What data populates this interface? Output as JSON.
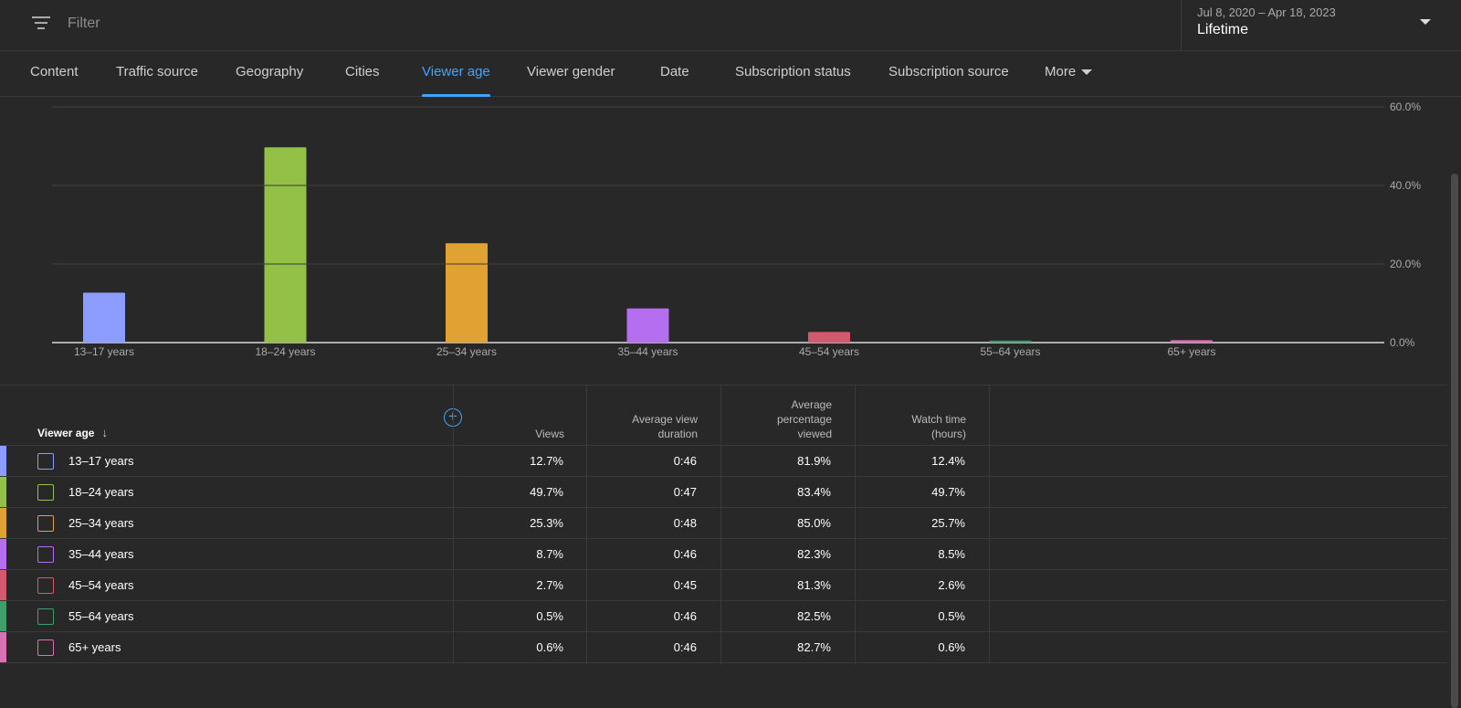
{
  "filter": {
    "placeholder": "Filter",
    "icon": "filter-lines-icon"
  },
  "date_selector": {
    "range": "Jul 8, 2020 – Apr 18, 2023",
    "label": "Lifetime"
  },
  "tabs": [
    {
      "label": "Content"
    },
    {
      "label": "Traffic source"
    },
    {
      "label": "Geography"
    },
    {
      "label": "Cities"
    },
    {
      "label": "Viewer age",
      "active": true
    },
    {
      "label": "Viewer gender"
    },
    {
      "label": "Date"
    },
    {
      "label": "Subscription status"
    },
    {
      "label": "Subscription source"
    },
    {
      "label": "More"
    }
  ],
  "chart_data": {
    "type": "bar",
    "categories": [
      "13–17 years",
      "18–24 years",
      "25–34 years",
      "35–44 years",
      "45–54 years",
      "55–64 years",
      "65+ years"
    ],
    "values": [
      12.7,
      49.7,
      25.3,
      8.7,
      2.7,
      0.5,
      0.6
    ],
    "colors": [
      "#8c9cff",
      "#93c047",
      "#e0a233",
      "#b66ef0",
      "#d35a6e",
      "#3f9e6c",
      "#d972b3"
    ],
    "yticks": [
      "60.0%",
      "40.0%",
      "20.0%",
      "0.0%"
    ],
    "ylim": [
      0,
      60
    ],
    "y_axis_side": "right",
    "grid": true
  },
  "table": {
    "dimension_header": "Viewer age",
    "headers": {
      "views": "Views",
      "avg_view_duration_1": "Average view",
      "avg_view_duration_2": "duration",
      "avg_pct_1": "Average",
      "avg_pct_2": "percentage",
      "avg_pct_3": "viewed",
      "watch_time_1": "Watch time",
      "watch_time_2": "(hours)"
    },
    "rows": [
      {
        "label": "13–17 years",
        "views": "12.7%",
        "duration": "0:46",
        "pct": "81.9%",
        "watch": "12.4%"
      },
      {
        "label": "18–24 years",
        "views": "49.7%",
        "duration": "0:47",
        "pct": "83.4%",
        "watch": "49.7%"
      },
      {
        "label": "25–34 years",
        "views": "25.3%",
        "duration": "0:48",
        "pct": "85.0%",
        "watch": "25.7%"
      },
      {
        "label": "35–44 years",
        "views": "8.7%",
        "duration": "0:46",
        "pct": "82.3%",
        "watch": "8.5%"
      },
      {
        "label": "45–54 years",
        "views": "2.7%",
        "duration": "0:45",
        "pct": "81.3%",
        "watch": "2.6%"
      },
      {
        "label": "55–64 years",
        "views": "0.5%",
        "duration": "0:46",
        "pct": "82.5%",
        "watch": "0.5%"
      },
      {
        "label": "65+ years",
        "views": "0.6%",
        "duration": "0:46",
        "pct": "82.7%",
        "watch": "0.6%"
      }
    ]
  }
}
